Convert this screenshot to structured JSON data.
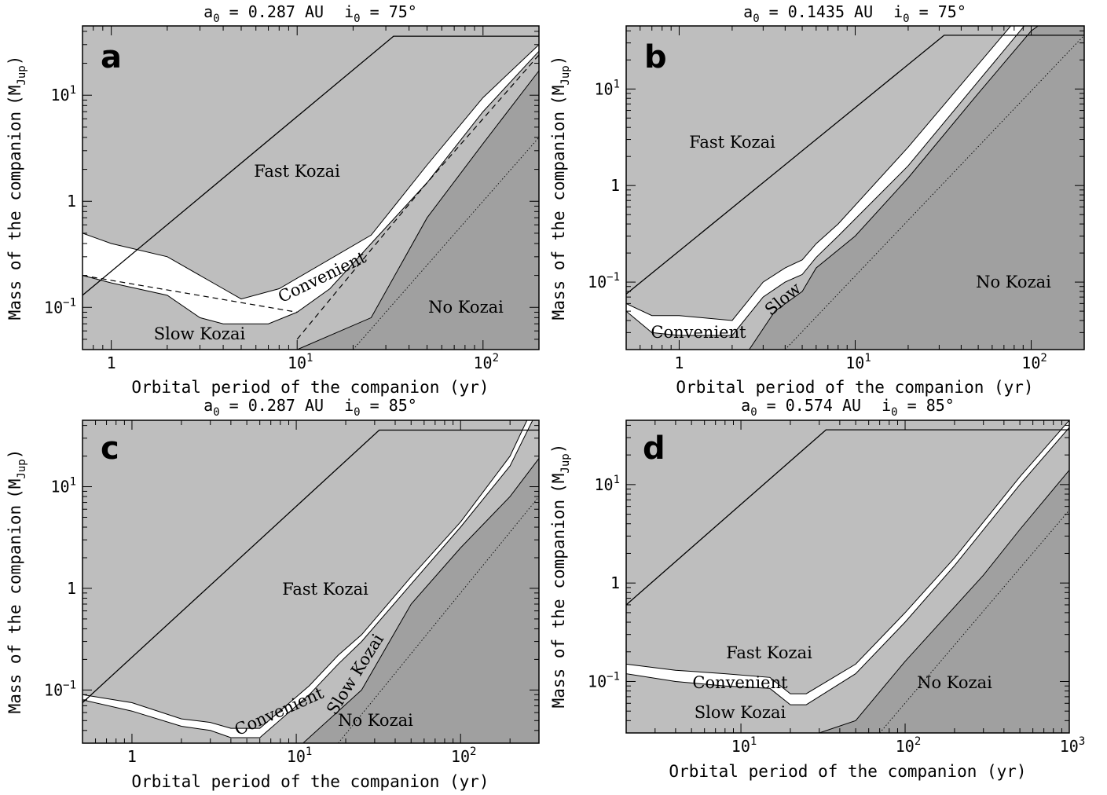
{
  "chart_data": [
    {
      "type": "area",
      "panel": "a",
      "title": "a_0 = 0.287 AU   i_0 = 75°",
      "title_parts": {
        "a": "a",
        "a_sub": "0",
        "a_val": " = 0.287 AU",
        "i": "i",
        "i_sub": "0",
        "i_val": " = 75°"
      },
      "xlabel": "Orbital period of the companion (yr)",
      "ylabel": "Mass of the companion",
      "ylabel_unit": "M",
      "ylabel_unit_sub": "Jup",
      "xscale": "log",
      "yscale": "log",
      "xlim": [
        0.7,
        200
      ],
      "ylim": [
        0.04,
        45
      ],
      "xticks": [
        {
          "value": 1,
          "base": "1",
          "exp": ""
        },
        {
          "value": 10,
          "base": "10",
          "exp": "1"
        },
        {
          "value": 100,
          "base": "10",
          "exp": "2"
        }
      ],
      "yticks": [
        {
          "value": 0.1,
          "base": "10",
          "exp": "−1"
        },
        {
          "value": 1,
          "base": "1",
          "exp": ""
        },
        {
          "value": 10,
          "base": "10",
          "exp": "1"
        }
      ],
      "colors": {
        "background": "#bebebe",
        "convenient": "#ffffff",
        "no_kozai": "#a0a0a0"
      },
      "convenient_upper": [
        [
          0.7,
          0.5
        ],
        [
          1,
          0.4
        ],
        [
          2,
          0.3
        ],
        [
          4,
          0.15
        ],
        [
          5,
          0.12
        ],
        [
          8,
          0.15
        ],
        [
          25,
          0.48
        ],
        [
          50,
          2.2
        ],
        [
          100,
          9.5
        ],
        [
          200,
          30
        ]
      ],
      "convenient_lower": [
        [
          0.7,
          0.2
        ],
        [
          1,
          0.17
        ],
        [
          2,
          0.13
        ],
        [
          3,
          0.08
        ],
        [
          4,
          0.07
        ],
        [
          7,
          0.07
        ],
        [
          10,
          0.09
        ],
        [
          15,
          0.15
        ],
        [
          25,
          0.4
        ],
        [
          50,
          1.5
        ],
        [
          100,
          7
        ],
        [
          200,
          26
        ]
      ],
      "no_kozai_boundary": [
        [
          10,
          0.04
        ],
        [
          25,
          0.08
        ],
        [
          50,
          0.7
        ],
        [
          100,
          3.5
        ],
        [
          200,
          17
        ]
      ],
      "fast_kozai_line": [
        [
          0.7,
          0.13
        ],
        [
          33,
          36
        ],
        [
          200,
          36
        ]
      ],
      "dashed_line_1": [
        [
          0.7,
          0.2
        ],
        [
          10,
          0.09
        ]
      ],
      "dashed_line_2": [
        [
          10,
          0.05
        ],
        [
          25,
          0.35
        ],
        [
          50,
          1.5
        ],
        [
          100,
          6
        ],
        [
          200,
          24
        ]
      ],
      "dotted_line": [
        [
          20,
          0.04
        ],
        [
          200,
          4
        ]
      ],
      "labels": {
        "letter": "a",
        "fast": "Fast Kozai",
        "convenient": "Convenient",
        "slow": "Slow Kozai",
        "no": "No Kozai"
      }
    },
    {
      "type": "area",
      "panel": "b",
      "title": "a_0 = 0.1435 AU   i_0 = 75°",
      "title_parts": {
        "a": "a",
        "a_sub": "0",
        "a_val": " = 0.1435 AU",
        "i": "i",
        "i_sub": "0",
        "i_val": " = 75°"
      },
      "xlabel": "Orbital period of the companion (yr)",
      "ylabel": "Mass of the companion",
      "ylabel_unit": "M",
      "ylabel_unit_sub": "Jup",
      "xscale": "log",
      "yscale": "log",
      "xlim": [
        0.5,
        200
      ],
      "ylim": [
        0.02,
        45
      ],
      "xticks": [
        {
          "value": 1,
          "base": "1",
          "exp": ""
        },
        {
          "value": 10,
          "base": "10",
          "exp": "1"
        },
        {
          "value": 100,
          "base": "10",
          "exp": "2"
        }
      ],
      "yticks": [
        {
          "value": 0.1,
          "base": "10",
          "exp": "−1"
        },
        {
          "value": 1,
          "base": "1",
          "exp": ""
        },
        {
          "value": 10,
          "base": "10",
          "exp": "1"
        }
      ],
      "colors": {
        "background": "#bebebe",
        "convenient": "#ffffff",
        "no_kozai": "#a0a0a0"
      },
      "convenient_upper": [
        [
          0.5,
          0.06
        ],
        [
          0.7,
          0.045
        ],
        [
          1,
          0.045
        ],
        [
          2,
          0.04
        ],
        [
          3,
          0.1
        ],
        [
          4,
          0.14
        ],
        [
          5,
          0.17
        ],
        [
          6,
          0.25
        ],
        [
          8,
          0.4
        ],
        [
          20,
          2.5
        ],
        [
          50,
          18
        ],
        [
          100,
          80
        ]
      ],
      "convenient_lower": [
        [
          0.5,
          0.05
        ],
        [
          0.7,
          0.03
        ],
        [
          1,
          0.028
        ],
        [
          2,
          0.028
        ],
        [
          3,
          0.07
        ],
        [
          4,
          0.1
        ],
        [
          5,
          0.12
        ],
        [
          6,
          0.18
        ],
        [
          8,
          0.3
        ],
        [
          20,
          1.6
        ],
        [
          50,
          12
        ],
        [
          100,
          55
        ]
      ],
      "no_kozai_boundary": [
        [
          2.5,
          0.02
        ],
        [
          3.5,
          0.05
        ],
        [
          5,
          0.08
        ],
        [
          6,
          0.14
        ],
        [
          10,
          0.3
        ],
        [
          20,
          1.2
        ],
        [
          50,
          9
        ],
        [
          100,
          40
        ],
        [
          200,
          100
        ]
      ],
      "fast_kozai_line": [
        [
          0.5,
          0.075
        ],
        [
          32,
          36
        ],
        [
          200,
          36
        ]
      ],
      "dotted_line": [
        [
          4,
          0.02
        ],
        [
          200,
          36
        ]
      ],
      "labels": {
        "letter": "b",
        "fast": "Fast Kozai",
        "convenient": "Convenient",
        "slow": "Slow",
        "no": "No Kozai"
      }
    },
    {
      "type": "area",
      "panel": "c",
      "title": "a_0 = 0.287 AU   i_0 = 85°",
      "title_parts": {
        "a": "a",
        "a_sub": "0",
        "a_val": " = 0.287 AU",
        "i": "i",
        "i_sub": "0",
        "i_val": " = 85°"
      },
      "xlabel": "Orbital period of the companion (yr)",
      "ylabel": "Mass of the companion",
      "ylabel_unit": "M",
      "ylabel_unit_sub": "Jup",
      "xscale": "log",
      "yscale": "log",
      "xlim": [
        0.5,
        300
      ],
      "ylim": [
        0.03,
        45
      ],
      "xticks": [
        {
          "value": 1,
          "base": "1",
          "exp": ""
        },
        {
          "value": 10,
          "base": "10",
          "exp": "1"
        },
        {
          "value": 100,
          "base": "10",
          "exp": "2"
        }
      ],
      "yticks": [
        {
          "value": 0.1,
          "base": "10",
          "exp": "−1"
        },
        {
          "value": 1,
          "base": "1",
          "exp": ""
        },
        {
          "value": 10,
          "base": "10",
          "exp": "1"
        }
      ],
      "colors": {
        "background": "#bebebe",
        "convenient": "#ffffff",
        "no_kozai": "#a0a0a0"
      },
      "convenient_upper": [
        [
          0.5,
          0.09
        ],
        [
          1,
          0.075
        ],
        [
          2,
          0.052
        ],
        [
          3,
          0.048
        ],
        [
          4,
          0.042
        ],
        [
          6,
          0.042
        ],
        [
          12,
          0.11
        ],
        [
          18,
          0.22
        ],
        [
          25,
          0.35
        ],
        [
          50,
          1.3
        ],
        [
          100,
          4.5
        ],
        [
          200,
          20
        ],
        [
          300,
          80
        ]
      ],
      "convenient_lower": [
        [
          0.5,
          0.08
        ],
        [
          1,
          0.062
        ],
        [
          2,
          0.044
        ],
        [
          3,
          0.04
        ],
        [
          4,
          0.034
        ],
        [
          6,
          0.034
        ],
        [
          12,
          0.09
        ],
        [
          18,
          0.18
        ],
        [
          25,
          0.3
        ],
        [
          50,
          1.1
        ],
        [
          100,
          4
        ],
        [
          200,
          16
        ],
        [
          300,
          60
        ]
      ],
      "no_kozai_boundary": [
        [
          11,
          0.03
        ],
        [
          25,
          0.1
        ],
        [
          50,
          0.7
        ],
        [
          100,
          2.5
        ],
        [
          200,
          8
        ],
        [
          300,
          19
        ]
      ],
      "fast_kozai_line": [
        [
          0.5,
          0.075
        ],
        [
          32,
          36
        ],
        [
          300,
          36
        ]
      ],
      "dotted_line": [
        [
          18,
          0.03
        ],
        [
          300,
          8
        ]
      ],
      "labels": {
        "letter": "c",
        "fast": "Fast Kozai",
        "convenient": "Convenient",
        "slow": "Slow Kozai",
        "no": "No Kozai"
      }
    },
    {
      "type": "area",
      "panel": "d",
      "title": "a_0 = 0.574 AU   i_0 = 85°",
      "title_parts": {
        "a": "a",
        "a_sub": "0",
        "a_val": " = 0.574 AU",
        "i": "i",
        "i_sub": "0",
        "i_val": " = 85°"
      },
      "xlabel": "Orbital period of the companion (yr)",
      "ylabel": "Mass of the companion",
      "ylabel_unit": "M",
      "ylabel_unit_sub": "Jup",
      "xscale": "log",
      "yscale": "log",
      "xlim": [
        2,
        1000
      ],
      "ylim": [
        0.03,
        45
      ],
      "xticks": [
        {
          "value": 10,
          "base": "10",
          "exp": "1"
        },
        {
          "value": 100,
          "base": "10",
          "exp": "2"
        },
        {
          "value": 1000,
          "base": "10",
          "exp": "3"
        }
      ],
      "yticks": [
        {
          "value": 0.1,
          "base": "10",
          "exp": "−1"
        },
        {
          "value": 1,
          "base": "1",
          "exp": ""
        },
        {
          "value": 10,
          "base": "10",
          "exp": "1"
        }
      ],
      "colors": {
        "background": "#bebebe",
        "convenient": "#ffffff",
        "no_kozai": "#a0a0a0"
      },
      "convenient_upper": [
        [
          2,
          0.15
        ],
        [
          4,
          0.13
        ],
        [
          8,
          0.12
        ],
        [
          15,
          0.11
        ],
        [
          20,
          0.075
        ],
        [
          25,
          0.075
        ],
        [
          50,
          0.15
        ],
        [
          100,
          0.5
        ],
        [
          200,
          1.8
        ],
        [
          500,
          12
        ],
        [
          1000,
          45
        ]
      ],
      "convenient_lower": [
        [
          2,
          0.12
        ],
        [
          4,
          0.1
        ],
        [
          8,
          0.09
        ],
        [
          15,
          0.085
        ],
        [
          20,
          0.058
        ],
        [
          25,
          0.058
        ],
        [
          50,
          0.12
        ],
        [
          100,
          0.4
        ],
        [
          200,
          1.5
        ],
        [
          500,
          10
        ],
        [
          1000,
          38
        ]
      ],
      "no_kozai_boundary": [
        [
          30,
          0.03
        ],
        [
          50,
          0.04
        ],
        [
          100,
          0.16
        ],
        [
          300,
          1.2
        ],
        [
          500,
          3.5
        ],
        [
          1000,
          14
        ]
      ],
      "fast_kozai_line": [
        [
          2,
          0.6
        ],
        [
          33,
          36
        ],
        [
          1000,
          36
        ]
      ],
      "dotted_line": [
        [
          70,
          0.03
        ],
        [
          1000,
          5.5
        ]
      ],
      "labels": {
        "letter": "d",
        "fast": "Fast Kozai",
        "convenient": "Convenient",
        "slow": "Slow Kozai",
        "no": "No Kozai"
      }
    }
  ]
}
